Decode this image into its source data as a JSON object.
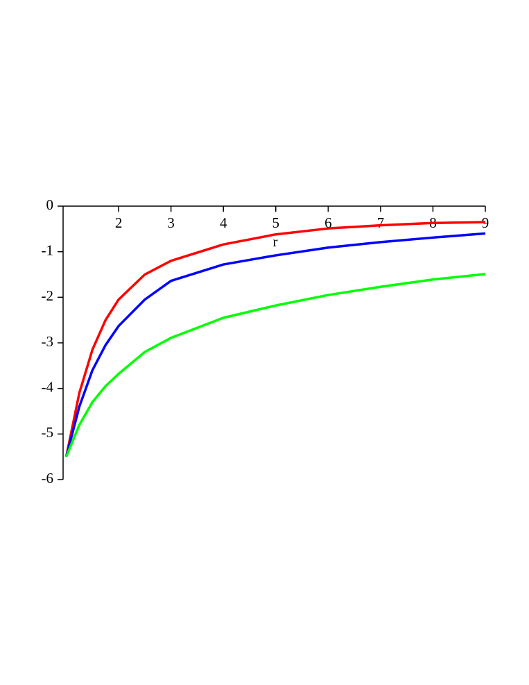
{
  "chart_data": {
    "type": "line",
    "x_label": "r",
    "x": [
      1,
      1.25,
      1.5,
      1.75,
      2,
      2.5,
      3,
      4,
      5,
      6,
      7,
      8,
      9
    ],
    "series": [
      {
        "color": "#ff0000",
        "values": [
          -5.5,
          -4.1,
          -3.15,
          -2.5,
          -2.05,
          -1.5,
          -1.2,
          -0.84,
          -0.62,
          -0.49,
          -0.42,
          -0.37,
          -0.35
        ]
      },
      {
        "color": "#0000ff",
        "values": [
          -5.5,
          -4.4,
          -3.6,
          -3.05,
          -2.63,
          -2.05,
          -1.64,
          -1.28,
          -1.08,
          -0.91,
          -0.79,
          -0.69,
          -0.6
        ]
      },
      {
        "color": "#00ff00",
        "values": [
          -5.5,
          -4.8,
          -4.3,
          -3.95,
          -3.68,
          -3.2,
          -2.89,
          -2.45,
          -2.18,
          -1.95,
          -1.77,
          -1.61,
          -1.49
        ]
      }
    ],
    "xlim": [
      0.94,
      9
    ],
    "ylim": [
      -6,
      0
    ],
    "xticks": [
      2,
      3,
      4,
      5,
      6,
      7,
      8,
      9
    ],
    "yticks": [
      0,
      -1,
      -2,
      -3,
      -4,
      -5,
      -6
    ]
  }
}
